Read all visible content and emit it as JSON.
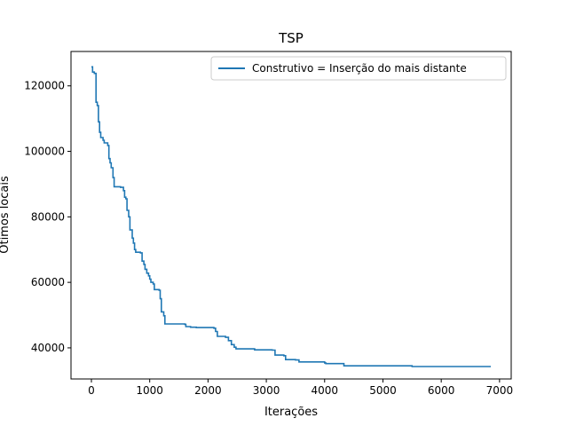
{
  "chart_data": {
    "type": "line",
    "title": "TSP",
    "xlabel": "Iterações",
    "ylabel": "Ótimos locais",
    "xlim": [
      -350,
      7200
    ],
    "ylim": [
      30500,
      130500
    ],
    "xticks": [
      0,
      1000,
      2000,
      3000,
      4000,
      5000,
      6000,
      7000
    ],
    "yticks": [
      40000,
      60000,
      80000,
      100000,
      120000
    ],
    "grid": false,
    "legend_position": "top-right",
    "series": [
      {
        "name": "Construtivo = Inserção do mais distante",
        "color": "#1f77b4",
        "step": true,
        "points": [
          [
            0,
            125800
          ],
          [
            20,
            124200
          ],
          [
            50,
            123800
          ],
          [
            80,
            115000
          ],
          [
            100,
            114000
          ],
          [
            120,
            109000
          ],
          [
            140,
            105800
          ],
          [
            160,
            104200
          ],
          [
            200,
            103400
          ],
          [
            220,
            102600
          ],
          [
            280,
            101800
          ],
          [
            300,
            97800
          ],
          [
            320,
            96500
          ],
          [
            340,
            95000
          ],
          [
            370,
            92000
          ],
          [
            390,
            89200
          ],
          [
            500,
            89000
          ],
          [
            550,
            88000
          ],
          [
            570,
            86000
          ],
          [
            590,
            85500
          ],
          [
            610,
            82000
          ],
          [
            640,
            80000
          ],
          [
            660,
            76000
          ],
          [
            700,
            73500
          ],
          [
            720,
            72000
          ],
          [
            740,
            70000
          ],
          [
            760,
            69200
          ],
          [
            840,
            69000
          ],
          [
            870,
            66500
          ],
          [
            900,
            65500
          ],
          [
            920,
            64000
          ],
          [
            950,
            62800
          ],
          [
            980,
            62000
          ],
          [
            1000,
            61000
          ],
          [
            1020,
            60000
          ],
          [
            1060,
            59500
          ],
          [
            1080,
            57800
          ],
          [
            1160,
            57600
          ],
          [
            1180,
            55000
          ],
          [
            1200,
            51000
          ],
          [
            1240,
            49800
          ],
          [
            1260,
            47300
          ],
          [
            1600,
            47200
          ],
          [
            1620,
            46500
          ],
          [
            1700,
            46300
          ],
          [
            1800,
            46200
          ],
          [
            2100,
            46000
          ],
          [
            2130,
            45000
          ],
          [
            2160,
            43500
          ],
          [
            2300,
            43200
          ],
          [
            2350,
            42200
          ],
          [
            2400,
            41000
          ],
          [
            2450,
            40200
          ],
          [
            2480,
            39700
          ],
          [
            2800,
            39400
          ],
          [
            3100,
            39300
          ],
          [
            3150,
            37800
          ],
          [
            3300,
            37600
          ],
          [
            3330,
            36400
          ],
          [
            3500,
            36300
          ],
          [
            3560,
            35700
          ],
          [
            4000,
            35400
          ],
          [
            4020,
            35200
          ],
          [
            4300,
            35200
          ],
          [
            4330,
            34500
          ],
          [
            5500,
            34300
          ],
          [
            6850,
            34300
          ]
        ]
      }
    ]
  }
}
